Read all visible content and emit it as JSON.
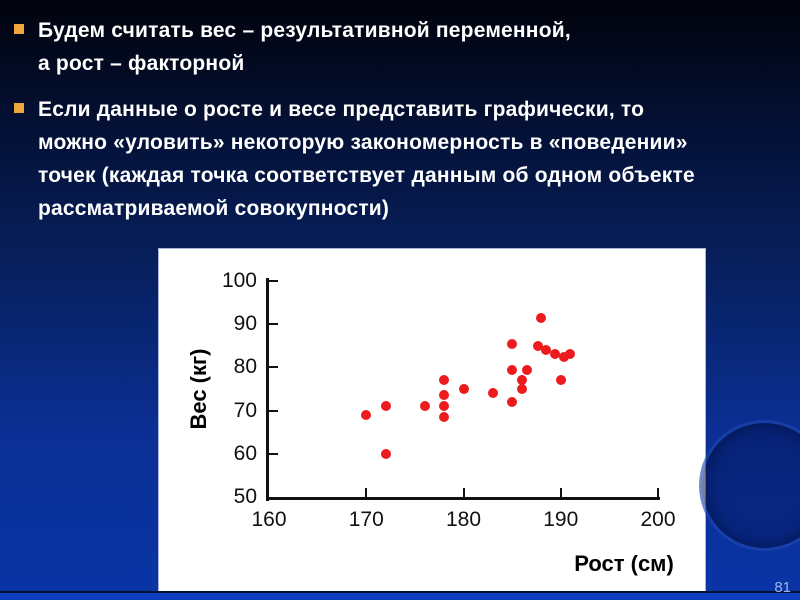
{
  "slide": {
    "page_number": "81",
    "text_color": "#ffffff",
    "bullet_color": "#efa63b",
    "bullets": [
      {
        "lines": [
          "Будем считать вес – результативной переменной,",
          "а рост – факторной"
        ]
      },
      {
        "lines": [
          "Если данные о росте и весе представить графически, то",
          "можно «уловить» некоторую закономерность в «поведении»",
          "точек (каждая точка соответствует данным об одном объекте",
          "рассматриваемой совокупности)"
        ]
      }
    ]
  },
  "chart_data": {
    "type": "scatter",
    "title": "",
    "xlabel": "Рост (см)",
    "ylabel": "Вес (кг)",
    "xlim": [
      160,
      200
    ],
    "ylim": [
      50,
      100
    ],
    "x_ticks": [
      160,
      170,
      180,
      190,
      200
    ],
    "y_ticks": [
      50,
      60,
      70,
      80,
      90,
      100
    ],
    "grid": false,
    "legend_position": "none",
    "point_color": "#ec1c1e",
    "background": "#ffffff",
    "points": [
      [
        170,
        69
      ],
      [
        172,
        71
      ],
      [
        172,
        60
      ],
      [
        176,
        71
      ],
      [
        178,
        77
      ],
      [
        178,
        73.5
      ],
      [
        178,
        71
      ],
      [
        178,
        68.5
      ],
      [
        180,
        75
      ],
      [
        183,
        74
      ],
      [
        185,
        85.5
      ],
      [
        185,
        79.5
      ],
      [
        185,
        72
      ],
      [
        186,
        77
      ],
      [
        186,
        75
      ],
      [
        186.5,
        79.5
      ],
      [
        188,
        91.5
      ],
      [
        187.7,
        85
      ],
      [
        188.5,
        84
      ],
      [
        189.4,
        83
      ],
      [
        190.3,
        82.5
      ],
      [
        191,
        83
      ],
      [
        190,
        77
      ]
    ]
  }
}
